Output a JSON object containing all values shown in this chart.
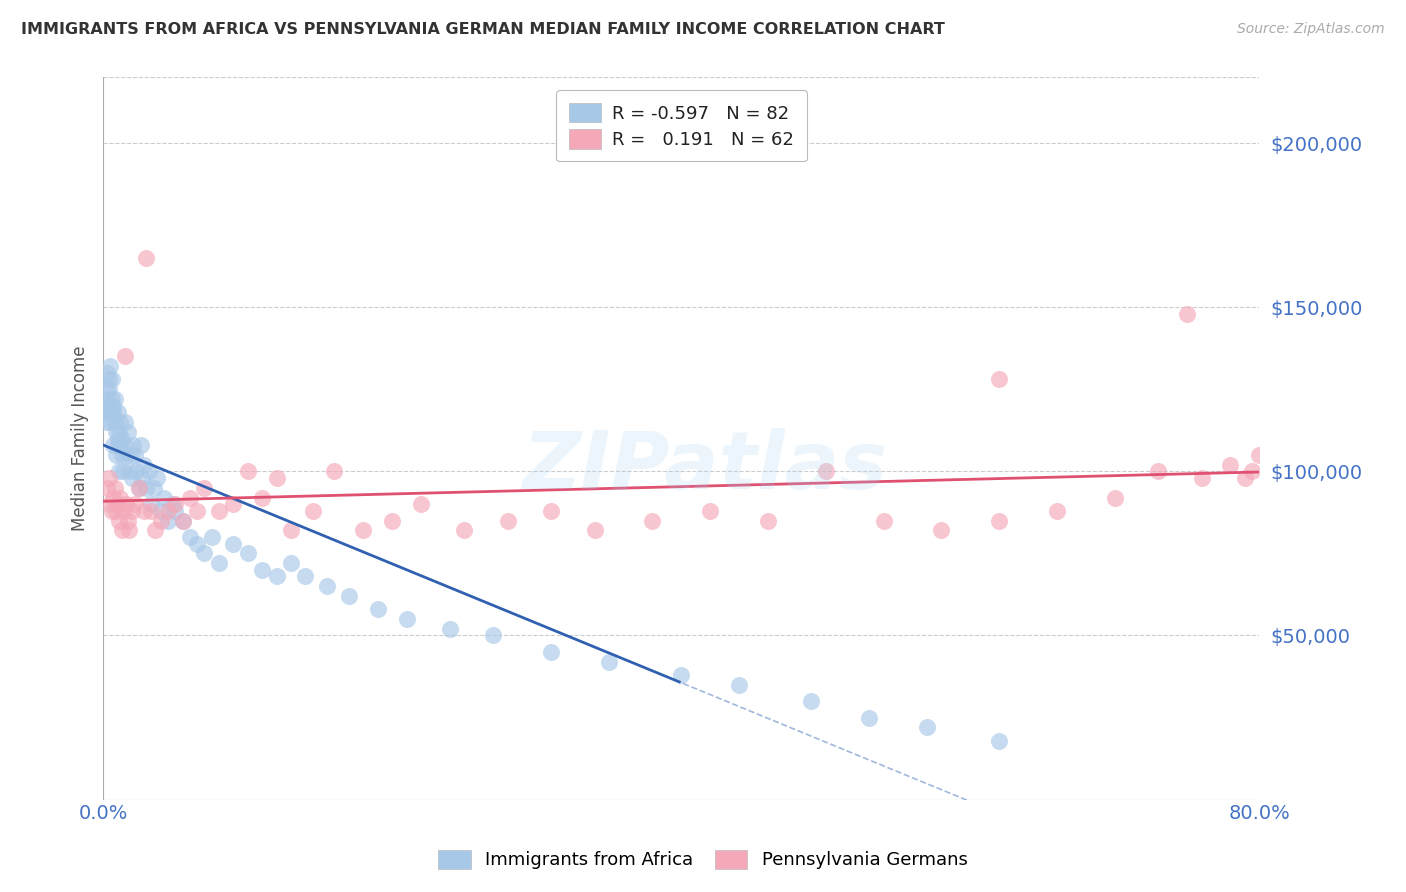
{
  "title": "IMMIGRANTS FROM AFRICA VS PENNSYLVANIA GERMAN MEDIAN FAMILY INCOME CORRELATION CHART",
  "source": "Source: ZipAtlas.com",
  "ylabel": "Median Family Income",
  "ytick_labels": [
    "$50,000",
    "$100,000",
    "$150,000",
    "$200,000"
  ],
  "ytick_values": [
    50000,
    100000,
    150000,
    200000
  ],
  "ylim": [
    0,
    220000
  ],
  "xlim": [
    0.0,
    0.8
  ],
  "series1_name": "Immigrants from Africa",
  "series2_name": "Pennsylvania Germans",
  "series1_color": "#a8c8e8",
  "series2_color": "#f4a8b8",
  "series1_line_color": "#3060b0",
  "series2_line_color": "#e05070",
  "background_color": "#ffffff",
  "grid_color": "#cccccc",
  "title_color": "#333333",
  "source_color": "#aaaaaa",
  "ylabel_color": "#555555",
  "ytick_color": "#4472c4",
  "xtick_color": "#4472c4",
  "watermark": "ZIPatlas",
  "series1_R": -0.597,
  "series1_N": 82,
  "series2_R": 0.191,
  "series2_N": 62,
  "series1_x": [
    0.001,
    0.002,
    0.002,
    0.003,
    0.003,
    0.003,
    0.004,
    0.004,
    0.004,
    0.005,
    0.005,
    0.005,
    0.006,
    0.006,
    0.006,
    0.007,
    0.007,
    0.007,
    0.008,
    0.008,
    0.009,
    0.009,
    0.01,
    0.01,
    0.01,
    0.011,
    0.011,
    0.012,
    0.012,
    0.013,
    0.013,
    0.014,
    0.015,
    0.015,
    0.016,
    0.017,
    0.018,
    0.019,
    0.02,
    0.021,
    0.022,
    0.023,
    0.025,
    0.026,
    0.027,
    0.028,
    0.03,
    0.032,
    0.033,
    0.035,
    0.037,
    0.04,
    0.042,
    0.045,
    0.048,
    0.05,
    0.055,
    0.06,
    0.065,
    0.07,
    0.075,
    0.08,
    0.09,
    0.1,
    0.11,
    0.12,
    0.13,
    0.14,
    0.155,
    0.17,
    0.19,
    0.21,
    0.24,
    0.27,
    0.31,
    0.35,
    0.4,
    0.44,
    0.49,
    0.53,
    0.57,
    0.62
  ],
  "series1_y": [
    118000,
    122000,
    115000,
    125000,
    130000,
    120000,
    128000,
    118000,
    125000,
    132000,
    120000,
    115000,
    122000,
    118000,
    128000,
    108000,
    120000,
    118000,
    115000,
    122000,
    105000,
    112000,
    110000,
    118000,
    108000,
    100000,
    112000,
    108000,
    115000,
    105000,
    110000,
    100000,
    108000,
    115000,
    105000,
    112000,
    100000,
    105000,
    98000,
    108000,
    105000,
    100000,
    95000,
    108000,
    98000,
    102000,
    95000,
    100000,
    90000,
    95000,
    98000,
    88000,
    92000,
    85000,
    90000,
    88000,
    85000,
    80000,
    78000,
    75000,
    80000,
    72000,
    78000,
    75000,
    70000,
    68000,
    72000,
    68000,
    65000,
    62000,
    58000,
    55000,
    52000,
    50000,
    45000,
    42000,
    38000,
    35000,
    30000,
    25000,
    22000,
    18000
  ],
  "series2_x": [
    0.003,
    0.004,
    0.005,
    0.006,
    0.007,
    0.008,
    0.009,
    0.01,
    0.011,
    0.012,
    0.013,
    0.014,
    0.015,
    0.016,
    0.017,
    0.018,
    0.02,
    0.022,
    0.025,
    0.028,
    0.03,
    0.033,
    0.036,
    0.04,
    0.045,
    0.05,
    0.055,
    0.06,
    0.065,
    0.07,
    0.08,
    0.09,
    0.1,
    0.11,
    0.12,
    0.13,
    0.145,
    0.16,
    0.18,
    0.2,
    0.22,
    0.25,
    0.28,
    0.31,
    0.34,
    0.38,
    0.42,
    0.46,
    0.5,
    0.54,
    0.58,
    0.62,
    0.66,
    0.7,
    0.73,
    0.76,
    0.78,
    0.79,
    0.795,
    0.8,
    0.62,
    0.75
  ],
  "series2_y": [
    95000,
    98000,
    90000,
    88000,
    92000,
    95000,
    88000,
    90000,
    85000,
    92000,
    82000,
    88000,
    135000,
    90000,
    85000,
    82000,
    88000,
    90000,
    95000,
    88000,
    165000,
    88000,
    82000,
    85000,
    88000,
    90000,
    85000,
    92000,
    88000,
    95000,
    88000,
    90000,
    100000,
    92000,
    98000,
    82000,
    88000,
    100000,
    82000,
    85000,
    90000,
    82000,
    85000,
    88000,
    82000,
    85000,
    88000,
    85000,
    100000,
    85000,
    82000,
    85000,
    88000,
    92000,
    100000,
    98000,
    102000,
    98000,
    100000,
    105000,
    128000,
    148000
  ]
}
